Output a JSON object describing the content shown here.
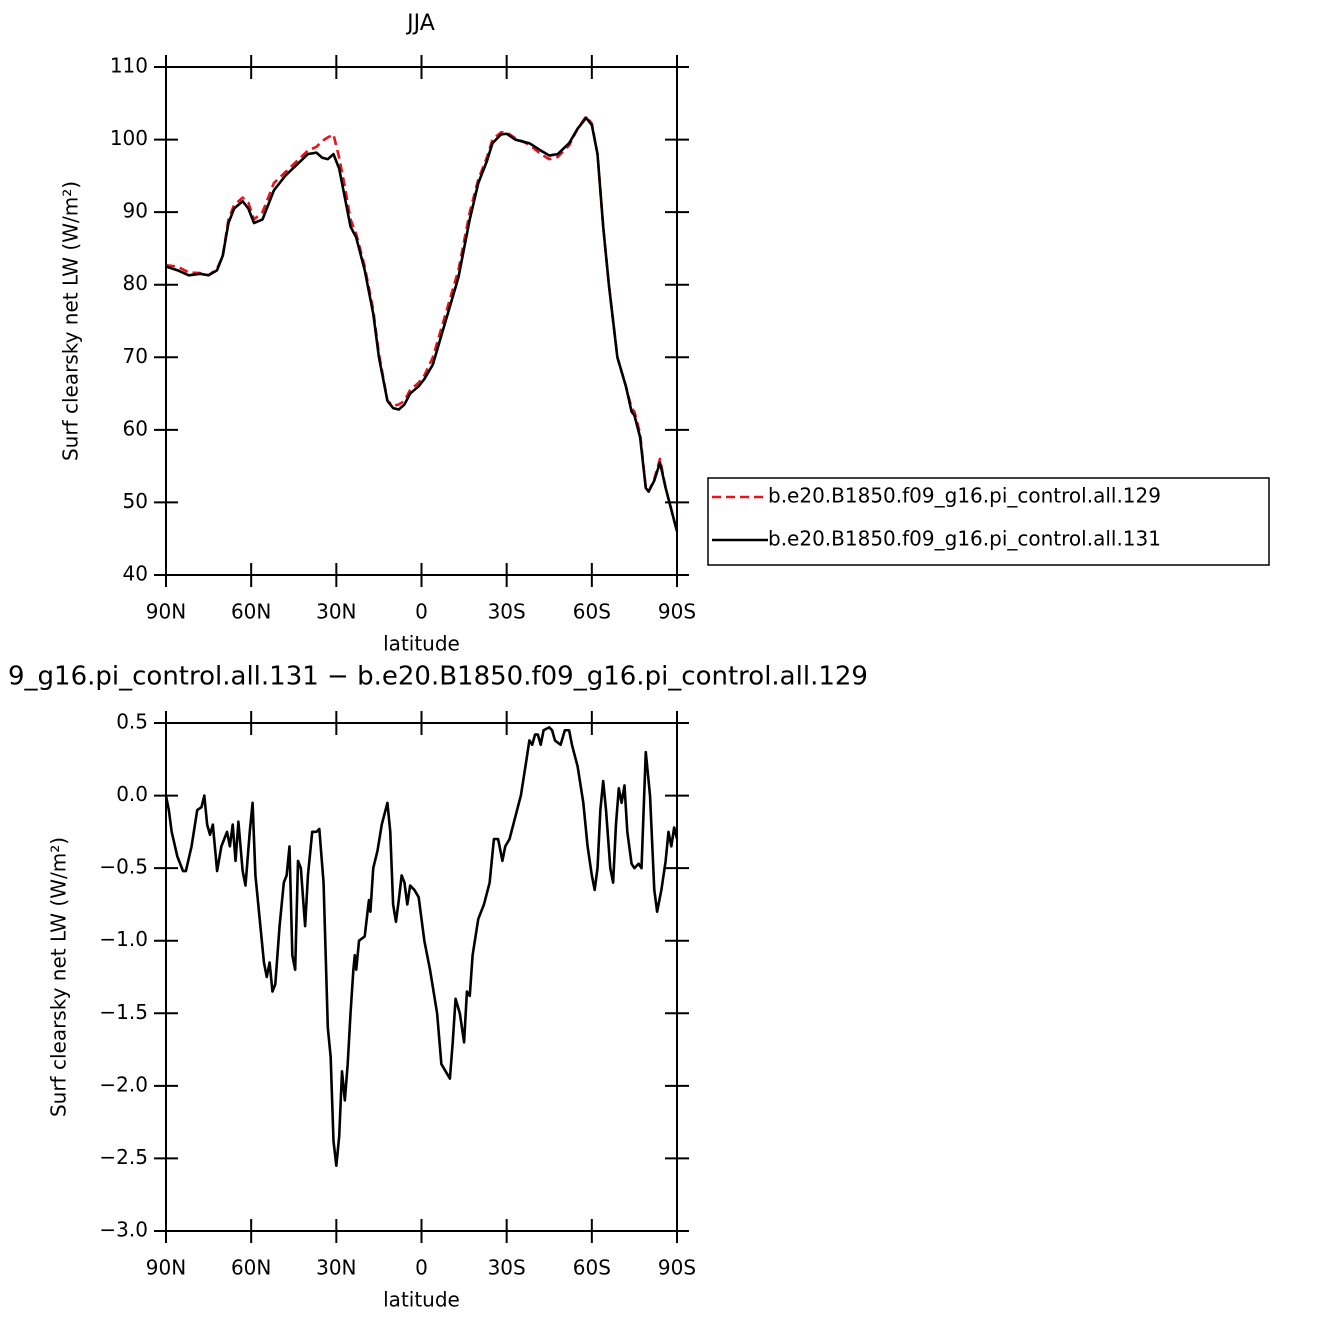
{
  "chart_data": [
    {
      "type": "line",
      "title": "JJA",
      "x_label": "latitude",
      "y_label": "Surf clearsky net LW (W/m²)",
      "xlim": [
        90,
        -90
      ],
      "ylim": [
        40,
        110
      ],
      "xticks": [
        {
          "value": 90,
          "label": "90N"
        },
        {
          "value": 60,
          "label": "60N"
        },
        {
          "value": 30,
          "label": "30N"
        },
        0,
        {
          "value": -30,
          "label": "30S"
        },
        {
          "value": -60,
          "label": "60S"
        },
        {
          "value": -90,
          "label": "90S"
        }
      ],
      "yticks": [
        40,
        50,
        60,
        70,
        80,
        90,
        100,
        110
      ],
      "legend": "right",
      "x": [
        90,
        86,
        82,
        78,
        75,
        72,
        70,
        68,
        66,
        63,
        61,
        59,
        56,
        52,
        48,
        44,
        40,
        37,
        35,
        33,
        31,
        29,
        27,
        25,
        23,
        20,
        17,
        15,
        12,
        10,
        8,
        6,
        4,
        1,
        -1,
        -4,
        -7,
        -10,
        -13,
        -15,
        -17,
        -20,
        -23,
        -25,
        -28,
        -30,
        -33,
        -38,
        -42,
        -45,
        -48,
        -52,
        -55,
        -58,
        -60,
        -62,
        -64,
        -66,
        -69,
        -72,
        -74,
        -75,
        -77,
        -79,
        -80,
        -82,
        -84,
        -86,
        -88,
        -90
      ],
      "series": [
        {
          "name": "b.e20.B1850.f09_g16.pi_control.all.129",
          "color": "#e8141a",
          "dash": true,
          "values": [
            82.7,
            82.5,
            81.7,
            81.6,
            81.3,
            82.2,
            84,
            89,
            91,
            92,
            91.3,
            89,
            90,
            94,
            95.5,
            97,
            98.5,
            99,
            99.8,
            100.3,
            100.7,
            97.5,
            93.5,
            89,
            87,
            82.5,
            76.5,
            70.5,
            64,
            63.3,
            63.5,
            64,
            65.5,
            66.5,
            67.5,
            70,
            74,
            78,
            82,
            86,
            90,
            94.5,
            97.5,
            100,
            101,
            101,
            100.2,
            99.3,
            98,
            97.3,
            97.6,
            99.2,
            101.5,
            103.2,
            102.2,
            98,
            88,
            80,
            70,
            66,
            63,
            62.5,
            59.5,
            52,
            51.5,
            53.2,
            56,
            52,
            49,
            46
          ]
        },
        {
          "name": "b.e20.B1850.f09_g16.pi_control.all.131",
          "color": "#000000",
          "dash": false,
          "values": [
            82.5,
            82,
            81.3,
            81.5,
            81.3,
            82,
            84,
            88.5,
            90.5,
            91.5,
            90.5,
            88.5,
            89,
            93,
            95,
            96.5,
            98,
            98.2,
            97.5,
            97.3,
            98,
            96,
            92,
            88,
            86.5,
            82,
            76,
            70,
            64,
            63,
            62.8,
            63.5,
            65,
            66,
            67,
            69,
            73,
            77,
            81,
            85,
            89,
            94,
            97,
            99.5,
            100.7,
            100.8,
            100,
            99.5,
            98.5,
            97.8,
            98,
            99.5,
            101.5,
            103,
            102,
            98,
            88,
            80,
            70,
            66,
            62.5,
            62,
            59,
            52,
            51.5,
            53,
            55.5,
            52,
            49,
            46
          ]
        }
      ]
    },
    {
      "type": "line",
      "title": "9_g16.pi_control.all.131 − b.e20.B1850.f09_g16.pi_control.all.129",
      "x_label": "latitude",
      "y_label": "Surf clearsky net LW (W/m²)",
      "xlim": [
        90,
        -90
      ],
      "ylim": [
        -3,
        0.5
      ],
      "xticks": [
        {
          "value": 90,
          "label": "90N"
        },
        {
          "value": 60,
          "label": "60N"
        },
        {
          "value": 30,
          "label": "30N"
        },
        0,
        {
          "value": -30,
          "label": "30S"
        },
        {
          "value": -60,
          "label": "60S"
        },
        {
          "value": -90,
          "label": "90S"
        }
      ],
      "yticks": [
        {
          "value": -3,
          "label": "−3.0"
        },
        {
          "value": -2.5,
          "label": "−2.5"
        },
        {
          "value": -2,
          "label": "−2.0"
        },
        {
          "value": -1.5,
          "label": "−1.5"
        },
        {
          "value": -1,
          "label": "−1.0"
        },
        {
          "value": -0.5,
          "label": "−0.5"
        },
        {
          "value": 0,
          "label": "0.0"
        },
        0.5
      ],
      "x": [
        90,
        89,
        88,
        86,
        84,
        83,
        81,
        79,
        77.5,
        76.5,
        75.5,
        74.5,
        73.5,
        72,
        70.5,
        68.5,
        67.5,
        66.5,
        65.5,
        64.5,
        63,
        62,
        60.5,
        59.5,
        58.5,
        57,
        55.5,
        54.5,
        53.5,
        52.5,
        51.5,
        50,
        48.5,
        47.5,
        46.5,
        45.5,
        44.5,
        43.5,
        42.5,
        41,
        40,
        38.5,
        37,
        36,
        34.5,
        33,
        32,
        31,
        30,
        29,
        28,
        27,
        26,
        25,
        24,
        23.5,
        23,
        22,
        20,
        19,
        18.5,
        18,
        17,
        15.5,
        14,
        12,
        11,
        10,
        9,
        8,
        7,
        6,
        5,
        4,
        2.5,
        1,
        -1,
        -3,
        -5.5,
        -7,
        -8.5,
        -10,
        -11,
        -12,
        -13.5,
        -15,
        -16,
        -17,
        -18,
        -20,
        -22,
        -24,
        -25.5,
        -27,
        -28.5,
        -29.5,
        -31,
        -33,
        -35,
        -37,
        -38,
        -39,
        -40,
        -41,
        -42,
        -43,
        -45,
        -46,
        -47,
        -49,
        -50.5,
        -52,
        -53,
        -55,
        -57,
        -58.5,
        -60,
        -61,
        -62,
        -63,
        -64,
        -65,
        -66.5,
        -67.5,
        -68.5,
        -69.5,
        -70.5,
        -71.5,
        -72.5,
        -74,
        -75,
        -76.5,
        -77.5,
        -79,
        -80.5,
        -82,
        -83,
        -84.5,
        -86,
        -87,
        -88,
        -89,
        -90
      ],
      "color": "#000000",
      "values": [
        0.0,
        -0.1,
        -0.25,
        -0.42,
        -0.52,
        -0.52,
        -0.35,
        -0.1,
        -0.08,
        0.0,
        -0.2,
        -0.27,
        -0.2,
        -0.52,
        -0.35,
        -0.25,
        -0.35,
        -0.2,
        -0.45,
        -0.18,
        -0.52,
        -0.62,
        -0.25,
        -0.05,
        -0.55,
        -0.85,
        -1.15,
        -1.25,
        -1.15,
        -1.35,
        -1.3,
        -0.9,
        -0.6,
        -0.55,
        -0.35,
        -1.1,
        -1.2,
        -0.45,
        -0.5,
        -0.9,
        -0.55,
        -0.25,
        -0.25,
        -0.23,
        -0.6,
        -1.6,
        -1.8,
        -2.38,
        -2.55,
        -2.35,
        -1.9,
        -2.1,
        -1.85,
        -1.5,
        -1.2,
        -1.1,
        -1.2,
        -1.0,
        -0.97,
        -0.8,
        -0.72,
        -0.8,
        -0.5,
        -0.38,
        -0.2,
        -0.05,
        -0.25,
        -0.75,
        -0.87,
        -0.72,
        -0.55,
        -0.6,
        -0.75,
        -0.62,
        -0.65,
        -0.7,
        -1.0,
        -1.2,
        -1.5,
        -1.85,
        -1.9,
        -1.95,
        -1.7,
        -1.4,
        -1.5,
        -1.7,
        -1.35,
        -1.38,
        -1.1,
        -0.85,
        -0.75,
        -0.6,
        -0.3,
        -0.3,
        -0.45,
        -0.35,
        -0.3,
        -0.15,
        0.0,
        0.25,
        0.38,
        0.35,
        0.42,
        0.42,
        0.35,
        0.45,
        0.47,
        0.45,
        0.38,
        0.35,
        0.45,
        0.45,
        0.35,
        0.2,
        -0.05,
        -0.35,
        -0.55,
        -0.65,
        -0.5,
        -0.1,
        0.1,
        -0.1,
        -0.5,
        -0.6,
        -0.2,
        0.05,
        -0.05,
        0.07,
        -0.25,
        -0.47,
        -0.5,
        -0.47,
        -0.5,
        0.3,
        0.0,
        -0.65,
        -0.8,
        -0.65,
        -0.45,
        -0.25,
        -0.35,
        -0.22,
        -0.3
      ]
    }
  ]
}
